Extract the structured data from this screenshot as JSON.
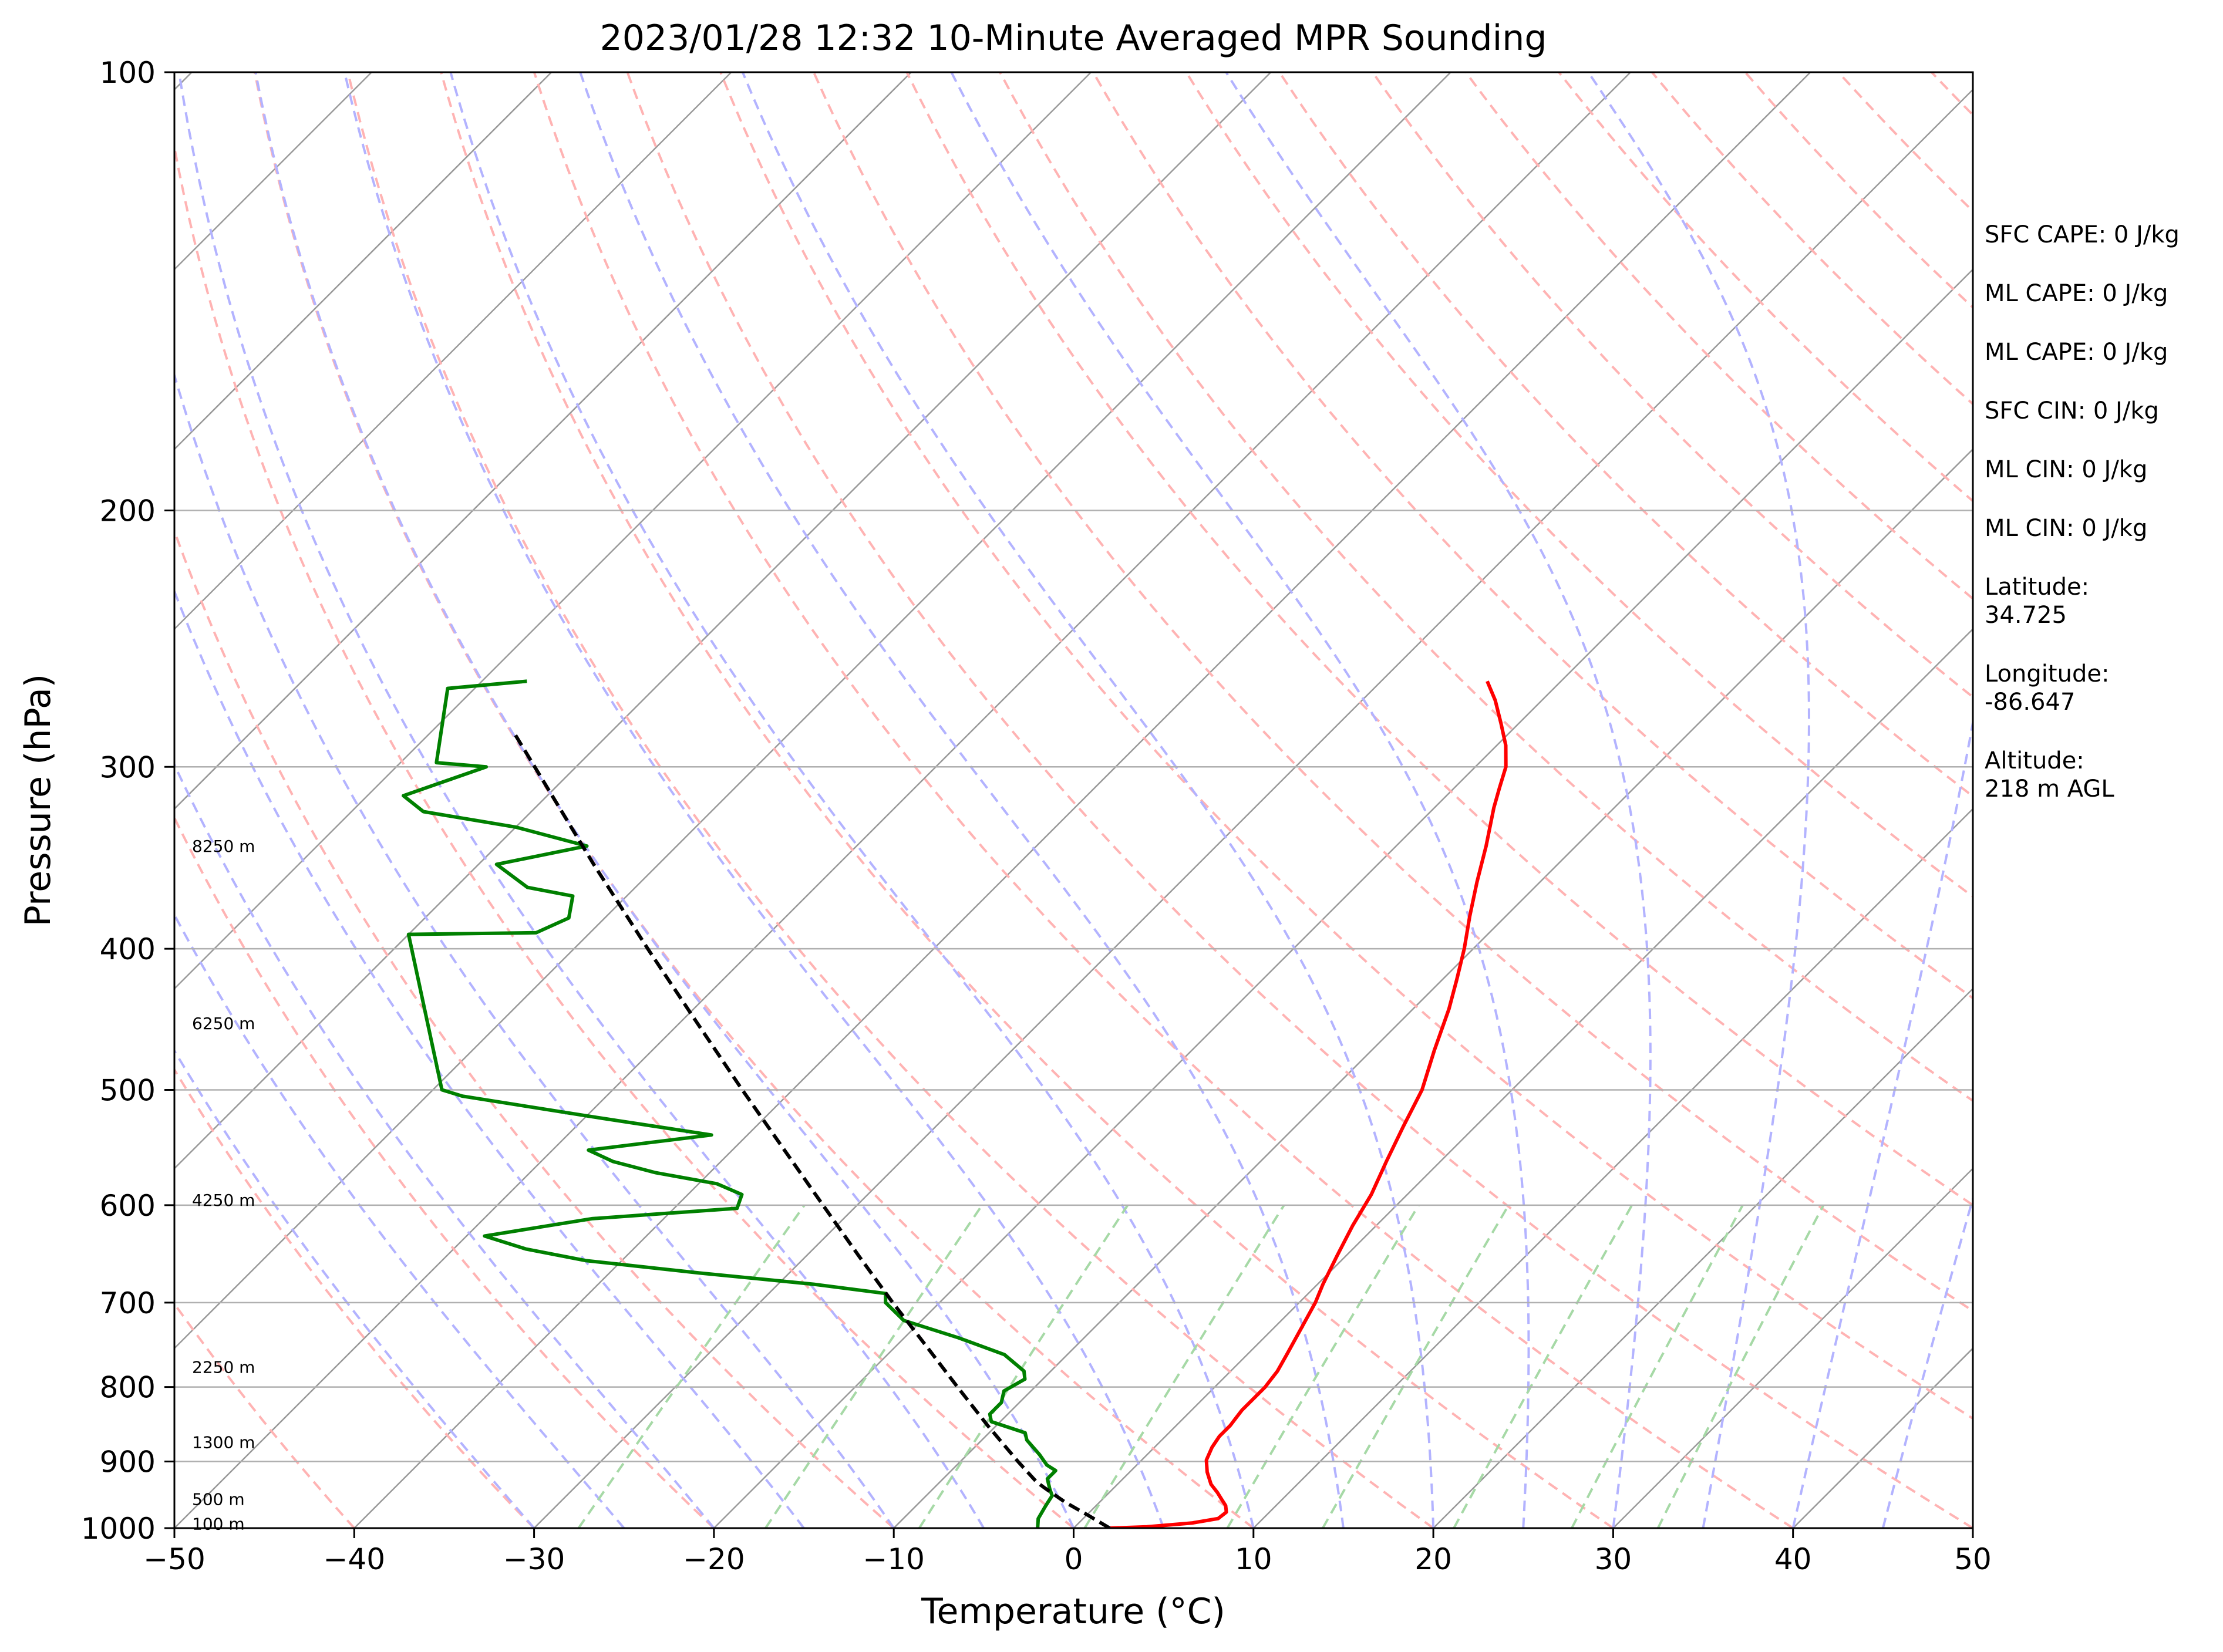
{
  "chart_data": {
    "type": "line",
    "subtype": "skew-t log-p sounding",
    "title": "2023/01/28 12:32 10-Minute Averaged MPR Sounding",
    "xlabel": "Temperature (°C)",
    "ylabel": "Pressure (hPa)",
    "xlim": [
      -50,
      50
    ],
    "ylim": [
      1000,
      100
    ],
    "y_scale": "log",
    "x_ticks": [
      "−50",
      "−40",
      "−30",
      "−20",
      "−10",
      "0",
      "10",
      "20",
      "30",
      "40",
      "50"
    ],
    "y_ticks": [
      "100",
      "200",
      "300",
      "400",
      "500",
      "600",
      "700",
      "800",
      "900",
      "1000"
    ],
    "grid": "isobars only",
    "reference_lines": {
      "isotherms": {
        "color": "#999999",
        "style": "solid"
      },
      "dry_adiabats": {
        "color": "#ffb3b3",
        "style": "dashed"
      },
      "moist_adiabats": {
        "color": "#b3b3ff",
        "style": "dashed"
      },
      "mixing_ratio": {
        "color": "#a6d9a6",
        "style": "dashed"
      }
    },
    "series": [
      {
        "role": "temperature",
        "color": "#ff0000",
        "points": [
          [
            1000,
            2.0
          ],
          [
            998,
            4.0
          ],
          [
            992,
            6.3
          ],
          [
            985,
            7.5
          ],
          [
            975,
            7.6
          ],
          [
            965,
            7.2
          ],
          [
            955,
            6.6
          ],
          [
            945,
            6.0
          ],
          [
            933,
            5.2
          ],
          [
            915,
            4.3
          ],
          [
            898,
            3.6
          ],
          [
            880,
            3.2
          ],
          [
            865,
            3.0
          ],
          [
            850,
            3.0
          ],
          [
            840,
            2.9
          ],
          [
            830,
            2.8
          ],
          [
            800,
            2.8
          ],
          [
            780,
            2.6
          ],
          [
            760,
            2.2
          ],
          [
            700,
            0.9
          ],
          [
            680,
            0.3
          ],
          [
            650,
            -0.5
          ],
          [
            620,
            -1.3
          ],
          [
            590,
            -2.0
          ],
          [
            560,
            -3.0
          ],
          [
            530,
            -4.0
          ],
          [
            500,
            -5.0
          ],
          [
            470,
            -6.5
          ],
          [
            440,
            -8.0
          ],
          [
            420,
            -9.2
          ],
          [
            400,
            -10.5
          ],
          [
            380,
            -12.0
          ],
          [
            360,
            -13.5
          ],
          [
            340,
            -15.0
          ],
          [
            320,
            -16.7
          ],
          [
            310,
            -17.5
          ],
          [
            300,
            -18.3
          ],
          [
            290,
            -19.5
          ],
          [
            280,
            -21.0
          ],
          [
            270,
            -22.6
          ],
          [
            262,
            -24.1
          ]
        ]
      },
      {
        "role": "dewpoint",
        "color": "#008000",
        "points": [
          [
            1000,
            -2.0
          ],
          [
            985,
            -2.5
          ],
          [
            965,
            -2.8
          ],
          [
            950,
            -3.0
          ],
          [
            940,
            -3.5
          ],
          [
            925,
            -4.2
          ],
          [
            913,
            -4.2
          ],
          [
            905,
            -5.0
          ],
          [
            890,
            -6.0
          ],
          [
            870,
            -7.5
          ],
          [
            860,
            -8.0
          ],
          [
            845,
            -10.5
          ],
          [
            835,
            -11.0
          ],
          [
            820,
            -11.0
          ],
          [
            805,
            -11.5
          ],
          [
            790,
            -11.0
          ],
          [
            780,
            -11.5
          ],
          [
            760,
            -13.5
          ],
          [
            740,
            -17.0
          ],
          [
            720,
            -21.0
          ],
          [
            700,
            -23.0
          ],
          [
            690,
            -23.5
          ],
          [
            680,
            -28.0
          ],
          [
            668,
            -35.0
          ],
          [
            655,
            -42.0
          ],
          [
            643,
            -46.0
          ],
          [
            630,
            -49.0
          ],
          [
            613,
            -44.0
          ],
          [
            603,
            -36.5
          ],
          [
            590,
            -37.0
          ],
          [
            580,
            -39.0
          ],
          [
            570,
            -43.0
          ],
          [
            560,
            -46.0
          ],
          [
            550,
            -48.0
          ],
          [
            537,
            -42.0
          ],
          [
            523,
            -49.0
          ],
          [
            505,
            -58.0
          ],
          [
            500,
            -59.5
          ],
          [
            391,
            -70.0
          ],
          [
            390,
            -63.0
          ],
          [
            381,
            -62.0
          ],
          [
            368,
            -63.0
          ],
          [
            363,
            -66.0
          ],
          [
            350,
            -69.0
          ],
          [
            340,
            -65.0
          ],
          [
            330,
            -70.0
          ],
          [
            322,
            -76.0
          ],
          [
            314,
            -78.0
          ],
          [
            300,
            -75.0
          ],
          [
            298,
            -78.0
          ],
          [
            265,
            -81.5
          ],
          [
            262,
            -77.5
          ]
        ]
      },
      {
        "role": "parcel profile",
        "color": "#000000",
        "style": "dashed",
        "points": [
          [
            1000,
            2.0
          ],
          [
            980,
            0.1
          ],
          [
            960,
            -1.9
          ],
          [
            940,
            -3.7
          ],
          [
            930,
            -4.6
          ],
          [
            900,
            -6.8
          ],
          [
            850,
            -10.5
          ],
          [
            800,
            -14.3
          ],
          [
            750,
            -18.3
          ],
          [
            700,
            -22.6
          ],
          [
            650,
            -27.1
          ],
          [
            600,
            -31.9
          ],
          [
            550,
            -37.1
          ],
          [
            500,
            -42.8
          ],
          [
            450,
            -49.0
          ],
          [
            400,
            -55.9
          ],
          [
            350,
            -63.6
          ],
          [
            300,
            -72.3
          ],
          [
            285,
            -75.2
          ]
        ]
      }
    ],
    "height_labels": [
      "8250 m",
      "6250 m",
      "4250 m",
      "2250 m",
      "1300 m",
      "500 m",
      "100 m"
    ],
    "height_label_pressures": [
      340,
      450,
      595,
      775,
      873,
      955,
      993
    ],
    "info_panel": [
      {
        "lines": [
          "SFC CAPE: 0 J/kg"
        ]
      },
      {
        "lines": [
          "ML CAPE: 0 J/kg"
        ]
      },
      {
        "lines": [
          "ML CAPE: 0 J/kg"
        ]
      },
      {
        "lines": [
          "SFC CIN: 0 J/kg"
        ]
      },
      {
        "lines": [
          "ML CIN: 0 J/kg"
        ]
      },
      {
        "lines": [
          "ML CIN: 0 J/kg"
        ]
      },
      {
        "lines": [
          "Latitude:",
          "34.725"
        ]
      },
      {
        "lines": [
          "Longitude:",
          "-86.647"
        ]
      },
      {
        "lines": [
          "Altitude:",
          "218 m AGL"
        ]
      }
    ]
  }
}
